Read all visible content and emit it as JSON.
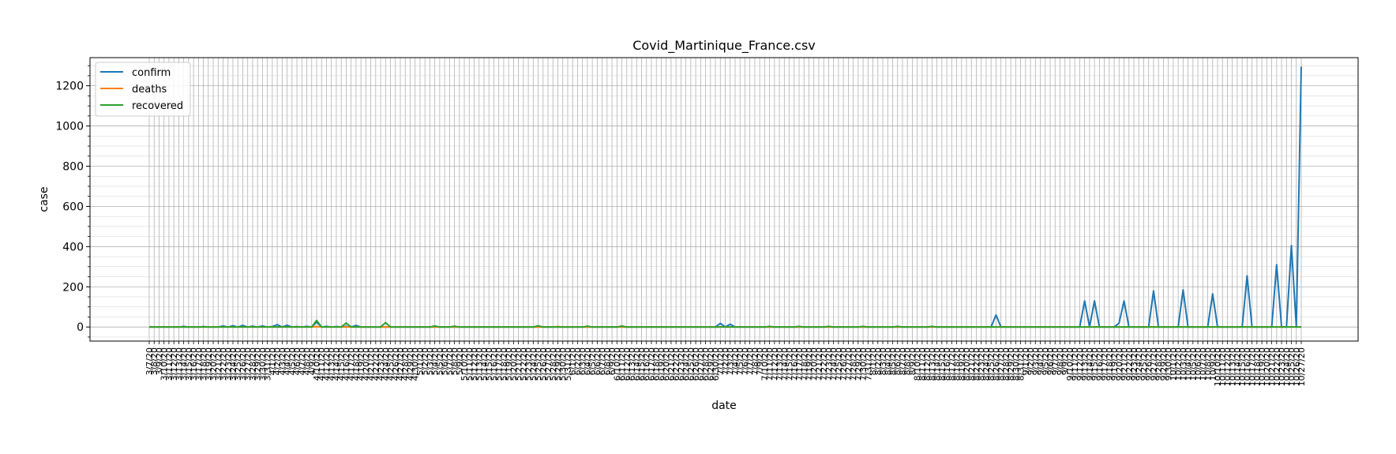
{
  "chart_data": {
    "type": "line",
    "title": "Covid_Martinique_France.csv",
    "xlabel": "date",
    "ylabel": "case",
    "ylim": [
      -70,
      1340
    ],
    "yticks": [
      0,
      200,
      400,
      600,
      800,
      1000,
      1200
    ],
    "grid": true,
    "legend_position": "top-left",
    "x_start": "3/7/20",
    "x_end": "10/27/20",
    "series": [
      {
        "name": "confirm",
        "color": "#1f77b4",
        "points": [
          [
            "3/7/20",
            0
          ],
          [
            "3/14/20",
            3
          ],
          [
            "3/18/20",
            2
          ],
          [
            "3/22/20",
            5
          ],
          [
            "3/24/20",
            6
          ],
          [
            "3/26/20",
            8
          ],
          [
            "3/28/20",
            4
          ],
          [
            "3/30/20",
            5
          ],
          [
            "4/1/20",
            2
          ],
          [
            "4/2/20",
            12
          ],
          [
            "4/4/20",
            9
          ],
          [
            "4/6/20",
            2
          ],
          [
            "4/8/20",
            3
          ],
          [
            "4/10/20",
            25
          ],
          [
            "4/12/20",
            3
          ],
          [
            "4/14/20",
            2
          ],
          [
            "4/16/20",
            3
          ],
          [
            "4/18/20",
            8
          ],
          [
            "4/19/20",
            0
          ],
          [
            "6/29/20",
            0
          ],
          [
            "7/1/20",
            18
          ],
          [
            "7/3/20",
            14
          ],
          [
            "7/5/20",
            0
          ],
          [
            "8/24/20",
            0
          ],
          [
            "8/26/20",
            60
          ],
          [
            "8/28/20",
            0
          ],
          [
            "9/12/20",
            0
          ],
          [
            "9/13/20",
            130
          ],
          [
            "9/14/20",
            0
          ],
          [
            "9/15/20",
            130
          ],
          [
            "9/16/20",
            0
          ],
          [
            "9/19/20",
            0
          ],
          [
            "9/20/20",
            20
          ],
          [
            "9/21/20",
            130
          ],
          [
            "9/22/20",
            0
          ],
          [
            "9/26/20",
            0
          ],
          [
            "9/27/20",
            180
          ],
          [
            "9/28/20",
            0
          ],
          [
            "10/2/20",
            0
          ],
          [
            "10/3/20",
            185
          ],
          [
            "10/4/20",
            0
          ],
          [
            "10/8/20",
            0
          ],
          [
            "10/9/20",
            165
          ],
          [
            "10/10/20",
            0
          ],
          [
            "10/15/20",
            0
          ],
          [
            "10/16/20",
            255
          ],
          [
            "10/17/20",
            0
          ],
          [
            "10/21/20",
            0
          ],
          [
            "10/22/20",
            310
          ],
          [
            "10/23/20",
            0
          ],
          [
            "10/24/20",
            0
          ],
          [
            "10/25/20",
            405
          ],
          [
            "10/26/20",
            0
          ],
          [
            "10/27/20",
            1295
          ]
        ]
      },
      {
        "name": "deaths",
        "color": "#ff7f0e",
        "points": [
          [
            "3/7/20",
            0
          ],
          [
            "4/9/20",
            0
          ],
          [
            "4/10/20",
            2
          ],
          [
            "4/11/20",
            0
          ],
          [
            "5/28/20",
            0
          ],
          [
            "5/29/20",
            2
          ],
          [
            "5/30/20",
            0
          ],
          [
            "10/27/20",
            0
          ]
        ]
      },
      {
        "name": "recovered",
        "color": "#2ca02c",
        "points": [
          [
            "3/7/20",
            0
          ],
          [
            "4/9/20",
            0
          ],
          [
            "4/10/20",
            33
          ],
          [
            "4/11/20",
            0
          ],
          [
            "4/15/20",
            0
          ],
          [
            "4/16/20",
            20
          ],
          [
            "4/17/20",
            0
          ],
          [
            "4/23/20",
            0
          ],
          [
            "4/24/20",
            22
          ],
          [
            "4/25/20",
            0
          ],
          [
            "5/3/20",
            0
          ],
          [
            "5/4/20",
            5
          ],
          [
            "5/5/20",
            0
          ],
          [
            "5/7/20",
            0
          ],
          [
            "5/8/20",
            4
          ],
          [
            "5/9/20",
            0
          ],
          [
            "5/24/20",
            0
          ],
          [
            "5/25/20",
            6
          ],
          [
            "5/26/20",
            0
          ],
          [
            "6/3/20",
            0
          ],
          [
            "6/4/20",
            4
          ],
          [
            "6/5/20",
            0
          ],
          [
            "6/10/20",
            0
          ],
          [
            "6/11/20",
            5
          ],
          [
            "6/12/20",
            0
          ],
          [
            "7/10/20",
            0
          ],
          [
            "7/11/20",
            3
          ],
          [
            "7/12/20",
            0
          ],
          [
            "7/16/20",
            0
          ],
          [
            "7/17/20",
            3
          ],
          [
            "7/18/20",
            0
          ],
          [
            "7/22/20",
            0
          ],
          [
            "7/23/20",
            3
          ],
          [
            "7/24/20",
            0
          ],
          [
            "7/29/20",
            0
          ],
          [
            "7/30/20",
            3
          ],
          [
            "7/31/20",
            0
          ],
          [
            "8/5/20",
            0
          ],
          [
            "8/6/20",
            3
          ],
          [
            "8/7/20",
            0
          ],
          [
            "8/12/20",
            0
          ],
          [
            "8/13/20",
            3
          ],
          [
            "8/14/20",
            0
          ],
          [
            "10/27/20",
            0
          ]
        ]
      }
    ]
  }
}
